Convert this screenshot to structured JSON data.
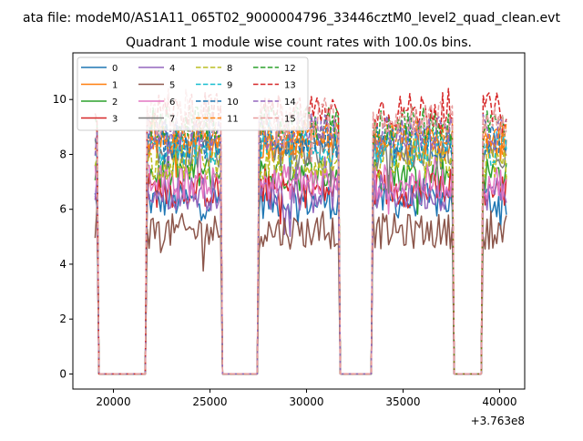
{
  "chart_data": {
    "type": "line",
    "suptitle": "ata file: modeM0/AS1A11_065T02_9000004796_33446cztM0_level2_quad_clean.evt",
    "title": "Quadrant 1 module wise count rates with 100.0s bins.",
    "xlabel": "",
    "ylabel": "",
    "x_offset_label": "+3.763e8",
    "xlim": [
      17900,
      41300
    ],
    "ylim": [
      -0.55,
      11.7
    ],
    "xticks": [
      20000,
      25000,
      30000,
      35000,
      40000
    ],
    "xtick_labels": [
      "20000",
      "25000",
      "30000",
      "35000",
      "40000"
    ],
    "yticks": [
      0,
      2,
      4,
      6,
      8,
      10
    ],
    "ytick_labels": [
      "0",
      "2",
      "4",
      "6",
      "8",
      "10"
    ],
    "grid": false,
    "legend_position": "top-left",
    "legend_columns": 4,
    "bin_seconds": 100.0,
    "time_start": 19050,
    "time_end": 40350,
    "off_intervals": [
      [
        19200,
        21700
      ],
      [
        25550,
        27500
      ],
      [
        31650,
        33400
      ],
      [
        37550,
        39100
      ]
    ],
    "series": [
      {
        "name": "0",
        "level": 6.3,
        "color": "#1f77b4",
        "dash": "solid"
      },
      {
        "name": "1",
        "level": 8.4,
        "color": "#ff7f0e",
        "dash": "solid"
      },
      {
        "name": "2",
        "level": 7.3,
        "color": "#2ca02c",
        "dash": "solid"
      },
      {
        "name": "3",
        "level": 6.7,
        "color": "#d62728",
        "dash": "solid"
      },
      {
        "name": "4",
        "level": 6.6,
        "color": "#9467bd",
        "dash": "solid"
      },
      {
        "name": "5",
        "level": 5.2,
        "color": "#8c564b",
        "dash": "solid"
      },
      {
        "name": "6",
        "level": 7.0,
        "color": "#e377c2",
        "dash": "solid"
      },
      {
        "name": "7",
        "level": 8.1,
        "color": "#7f7f7f",
        "dash": "solid"
      },
      {
        "name": "8",
        "level": 7.7,
        "color": "#bcbd22",
        "dash": "dashed"
      },
      {
        "name": "9",
        "level": 8.2,
        "color": "#17becf",
        "dash": "dashed"
      },
      {
        "name": "10",
        "level": 8.5,
        "color": "#1f77b4",
        "dash": "dashed"
      },
      {
        "name": "11",
        "level": 8.6,
        "color": "#ff7f0e",
        "dash": "dashed"
      },
      {
        "name": "12",
        "level": 9.1,
        "color": "#2ca02c",
        "dash": "dashed"
      },
      {
        "name": "13",
        "level": 9.6,
        "color": "#d62728",
        "dash": "dashed"
      },
      {
        "name": "14",
        "level": 8.8,
        "color": "#9467bd",
        "dash": "dashed"
      },
      {
        "name": "15",
        "level": 9.3,
        "color": "#e89c9c",
        "dash": "dashed"
      }
    ]
  }
}
